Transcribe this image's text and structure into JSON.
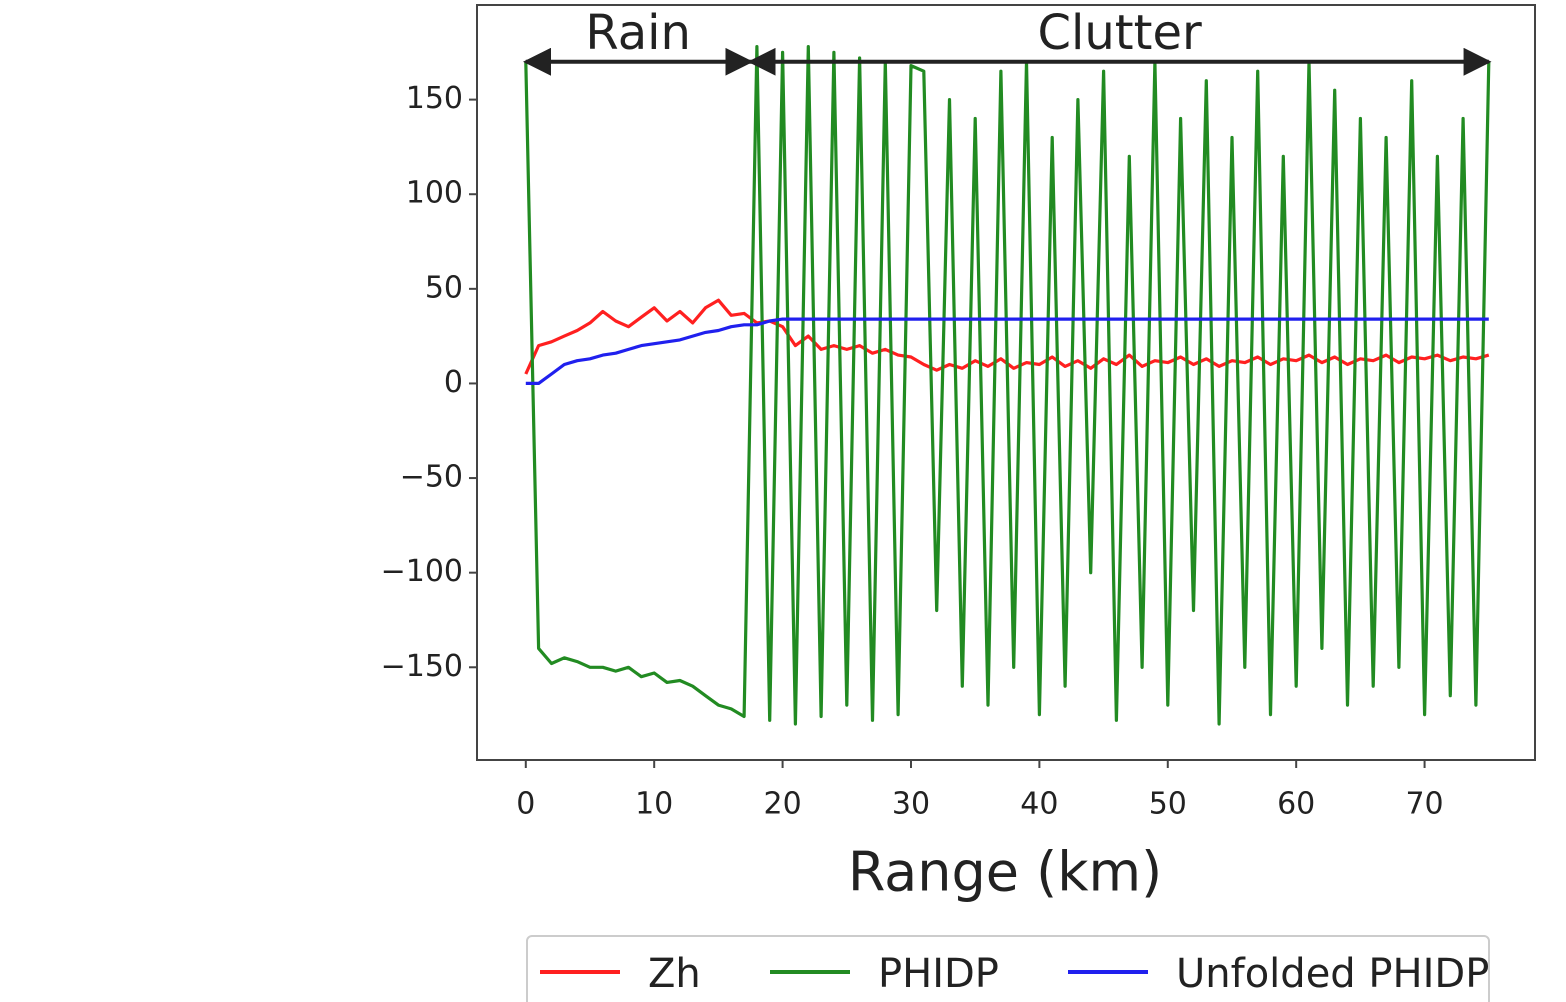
{
  "chart_data": {
    "type": "line",
    "xlabel": "Range (km)",
    "x": [
      0,
      1,
      2,
      3,
      4,
      5,
      6,
      7,
      8,
      9,
      10,
      11,
      12,
      13,
      14,
      15,
      16,
      17,
      18,
      19,
      20,
      21,
      22,
      23,
      24,
      25,
      26,
      27,
      28,
      29,
      30,
      31,
      32,
      33,
      34,
      35,
      36,
      37,
      38,
      39,
      40,
      41,
      42,
      43,
      44,
      45,
      46,
      47,
      48,
      49,
      50,
      51,
      52,
      53,
      54,
      55,
      56,
      57,
      58,
      59,
      60,
      61,
      62,
      63,
      64,
      65,
      66,
      67,
      68,
      69,
      70,
      71,
      72,
      73,
      74,
      75
    ],
    "series": [
      {
        "name": "Zh",
        "color": "#ff2020",
        "values": [
          5,
          20,
          22,
          25,
          28,
          32,
          38,
          33,
          30,
          35,
          40,
          33,
          38,
          32,
          40,
          44,
          36,
          37,
          32,
          33,
          30,
          20,
          25,
          18,
          20,
          18,
          20,
          16,
          18,
          15,
          14,
          10,
          7,
          10,
          8,
          12,
          9,
          13,
          8,
          11,
          10,
          14,
          9,
          12,
          8,
          13,
          10,
          15,
          9,
          12,
          11,
          14,
          10,
          13,
          9,
          12,
          11,
          14,
          10,
          13,
          12,
          15,
          11,
          14,
          10,
          13,
          12,
          15,
          11,
          14,
          13,
          15,
          12,
          14,
          13,
          15
        ]
      },
      {
        "name": "PHIDP",
        "color": "#228b22",
        "values": [
          170,
          -140,
          -148,
          -145,
          -147,
          -150,
          -150,
          -152,
          -150,
          -155,
          -153,
          -158,
          -157,
          -160,
          -165,
          -170,
          -172,
          -176,
          178,
          -178,
          175,
          -180,
          178,
          -176,
          175,
          -170,
          172,
          -178,
          170,
          -175,
          168,
          165,
          -120,
          150,
          -160,
          140,
          -170,
          165,
          -150,
          170,
          -175,
          130,
          -160,
          150,
          -100,
          165,
          -178,
          120,
          -150,
          170,
          -170,
          140,
          -120,
          160,
          -180,
          130,
          -150,
          165,
          -175,
          120,
          -160,
          170,
          -140,
          155,
          -170,
          140,
          -160,
          130,
          -150,
          160,
          -175,
          120,
          -165,
          140,
          -170,
          170
        ]
      },
      {
        "name": "Unfolded PHIDP",
        "color": "#2020ee",
        "values": [
          0,
          0,
          5,
          10,
          12,
          13,
          15,
          16,
          18,
          20,
          21,
          22,
          23,
          25,
          27,
          28,
          30,
          31,
          31,
          33,
          34,
          34,
          34,
          34,
          34,
          34,
          34,
          34,
          34,
          34,
          34,
          34,
          34,
          34,
          34,
          34,
          34,
          34,
          34,
          34,
          34,
          34,
          34,
          34,
          34,
          34,
          34,
          34,
          34,
          34,
          34,
          34,
          34,
          34,
          34,
          34,
          34,
          34,
          34,
          34,
          34,
          34,
          34,
          34,
          34,
          34,
          34,
          34,
          34,
          34,
          34,
          34,
          34,
          34,
          34,
          34
        ]
      }
    ],
    "annotations": [
      {
        "text": "Rain",
        "x_start": 0,
        "x_end": 17.5,
        "y": 170
      },
      {
        "text": "Clutter",
        "x_start": 17.5,
        "x_end": 75,
        "y": 170
      }
    ],
    "xlim": [
      -3.8,
      78.6
    ],
    "ylim": [
      -199,
      200
    ],
    "xticks": [
      0,
      10,
      20,
      30,
      40,
      50,
      60,
      70
    ],
    "yticks": [
      {
        "value": -150,
        "label": "−150"
      },
      {
        "value": -100,
        "label": "−100"
      },
      {
        "value": -50,
        "label": "−50"
      },
      0,
      50,
      100,
      150
    ],
    "legend": "lower center"
  }
}
